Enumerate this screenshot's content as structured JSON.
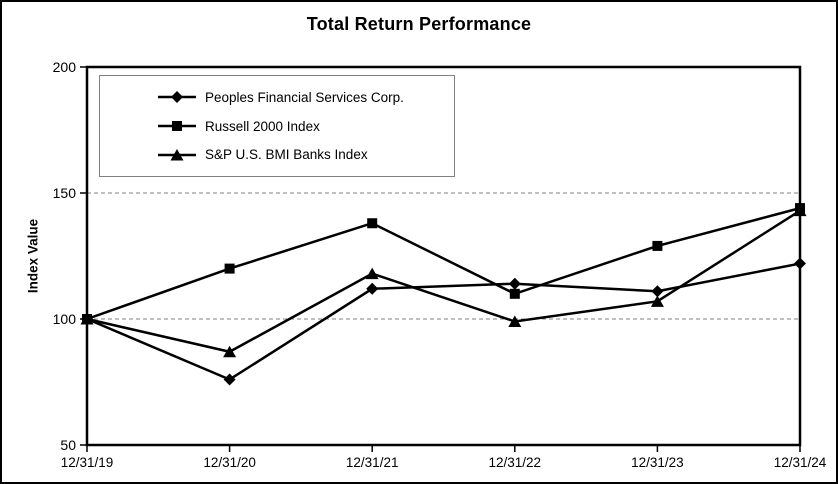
{
  "page": {
    "background_color": "#ffffff",
    "frame_border_color": "#000000"
  },
  "chart_data": {
    "type": "line",
    "title": "Total Return Performance",
    "xlabel": "",
    "ylabel": "Index Value",
    "categories": [
      "12/31/19",
      "12/31/20",
      "12/31/21",
      "12/31/22",
      "12/31/23",
      "12/31/24"
    ],
    "series": [
      {
        "name": "Peoples Financial Services Corp.",
        "marker": "diamond",
        "values": [
          100,
          76,
          112,
          114,
          111,
          122
        ]
      },
      {
        "name": "Russell 2000 Index",
        "marker": "square",
        "values": [
          100,
          120,
          138,
          110,
          129,
          144
        ]
      },
      {
        "name": "S&P U.S. BMI Banks Index",
        "marker": "triangle",
        "values": [
          100,
          87,
          118,
          99,
          107,
          143
        ]
      }
    ],
    "ylim": [
      50,
      200
    ],
    "yticks": [
      50,
      100,
      150,
      200
    ],
    "gridlines": [
      100,
      150
    ],
    "grid_style": "horizontal dashed",
    "legend_position": "top-left inside plot",
    "line_color": "#000000",
    "grid_color": "#808080",
    "axis_color": "#000000"
  }
}
